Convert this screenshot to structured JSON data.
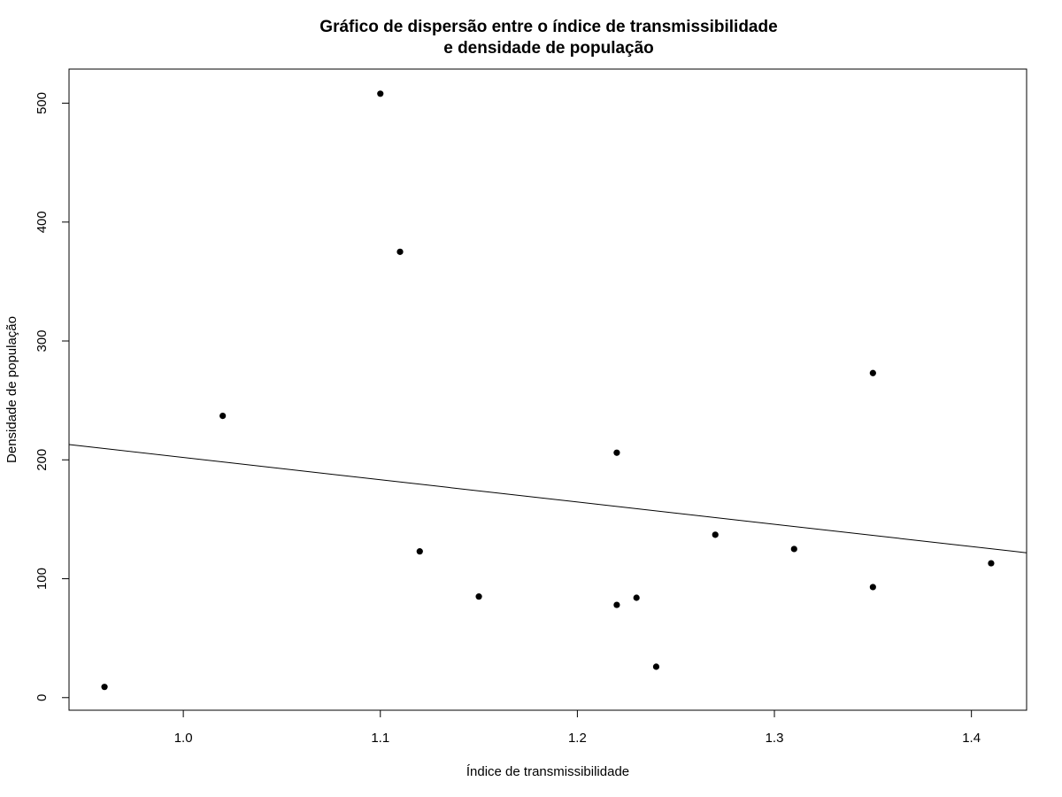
{
  "chart_data": {
    "type": "scatter",
    "title_lines": [
      "Gráfico de dispersão entre o índice de transmissibilidade",
      "e densidade de população"
    ],
    "xlabel": "Índice de transmissibilidade",
    "ylabel": "Densidade de população",
    "xlim": [
      0.942,
      1.428
    ],
    "ylim": [
      -10.6,
      528.7
    ],
    "x_ticks": [
      1.0,
      1.1,
      1.2,
      1.3,
      1.4
    ],
    "x_tick_labels": [
      "1.0",
      "1.1",
      "1.2",
      "1.3",
      "1.4"
    ],
    "y_ticks": [
      0,
      100,
      200,
      300,
      400,
      500
    ],
    "y_tick_labels": [
      "0",
      "100",
      "200",
      "300",
      "400",
      "500"
    ],
    "grid": false,
    "series": [
      {
        "points": [
          {
            "x": 0.96,
            "y": 9
          },
          {
            "x": 1.02,
            "y": 237
          },
          {
            "x": 1.1,
            "y": 508
          },
          {
            "x": 1.11,
            "y": 375
          },
          {
            "x": 1.12,
            "y": 123
          },
          {
            "x": 1.15,
            "y": 85
          },
          {
            "x": 1.22,
            "y": 206
          },
          {
            "x": 1.22,
            "y": 78
          },
          {
            "x": 1.23,
            "y": 84
          },
          {
            "x": 1.24,
            "y": 26
          },
          {
            "x": 1.27,
            "y": 137
          },
          {
            "x": 1.31,
            "y": 125
          },
          {
            "x": 1.35,
            "y": 273
          },
          {
            "x": 1.35,
            "y": 93
          },
          {
            "x": 1.41,
            "y": 113
          }
        ],
        "color": "#000000"
      }
    ],
    "regression_line": {
      "intercept": 389.3,
      "slope": -187.3,
      "color": "#000000"
    }
  }
}
